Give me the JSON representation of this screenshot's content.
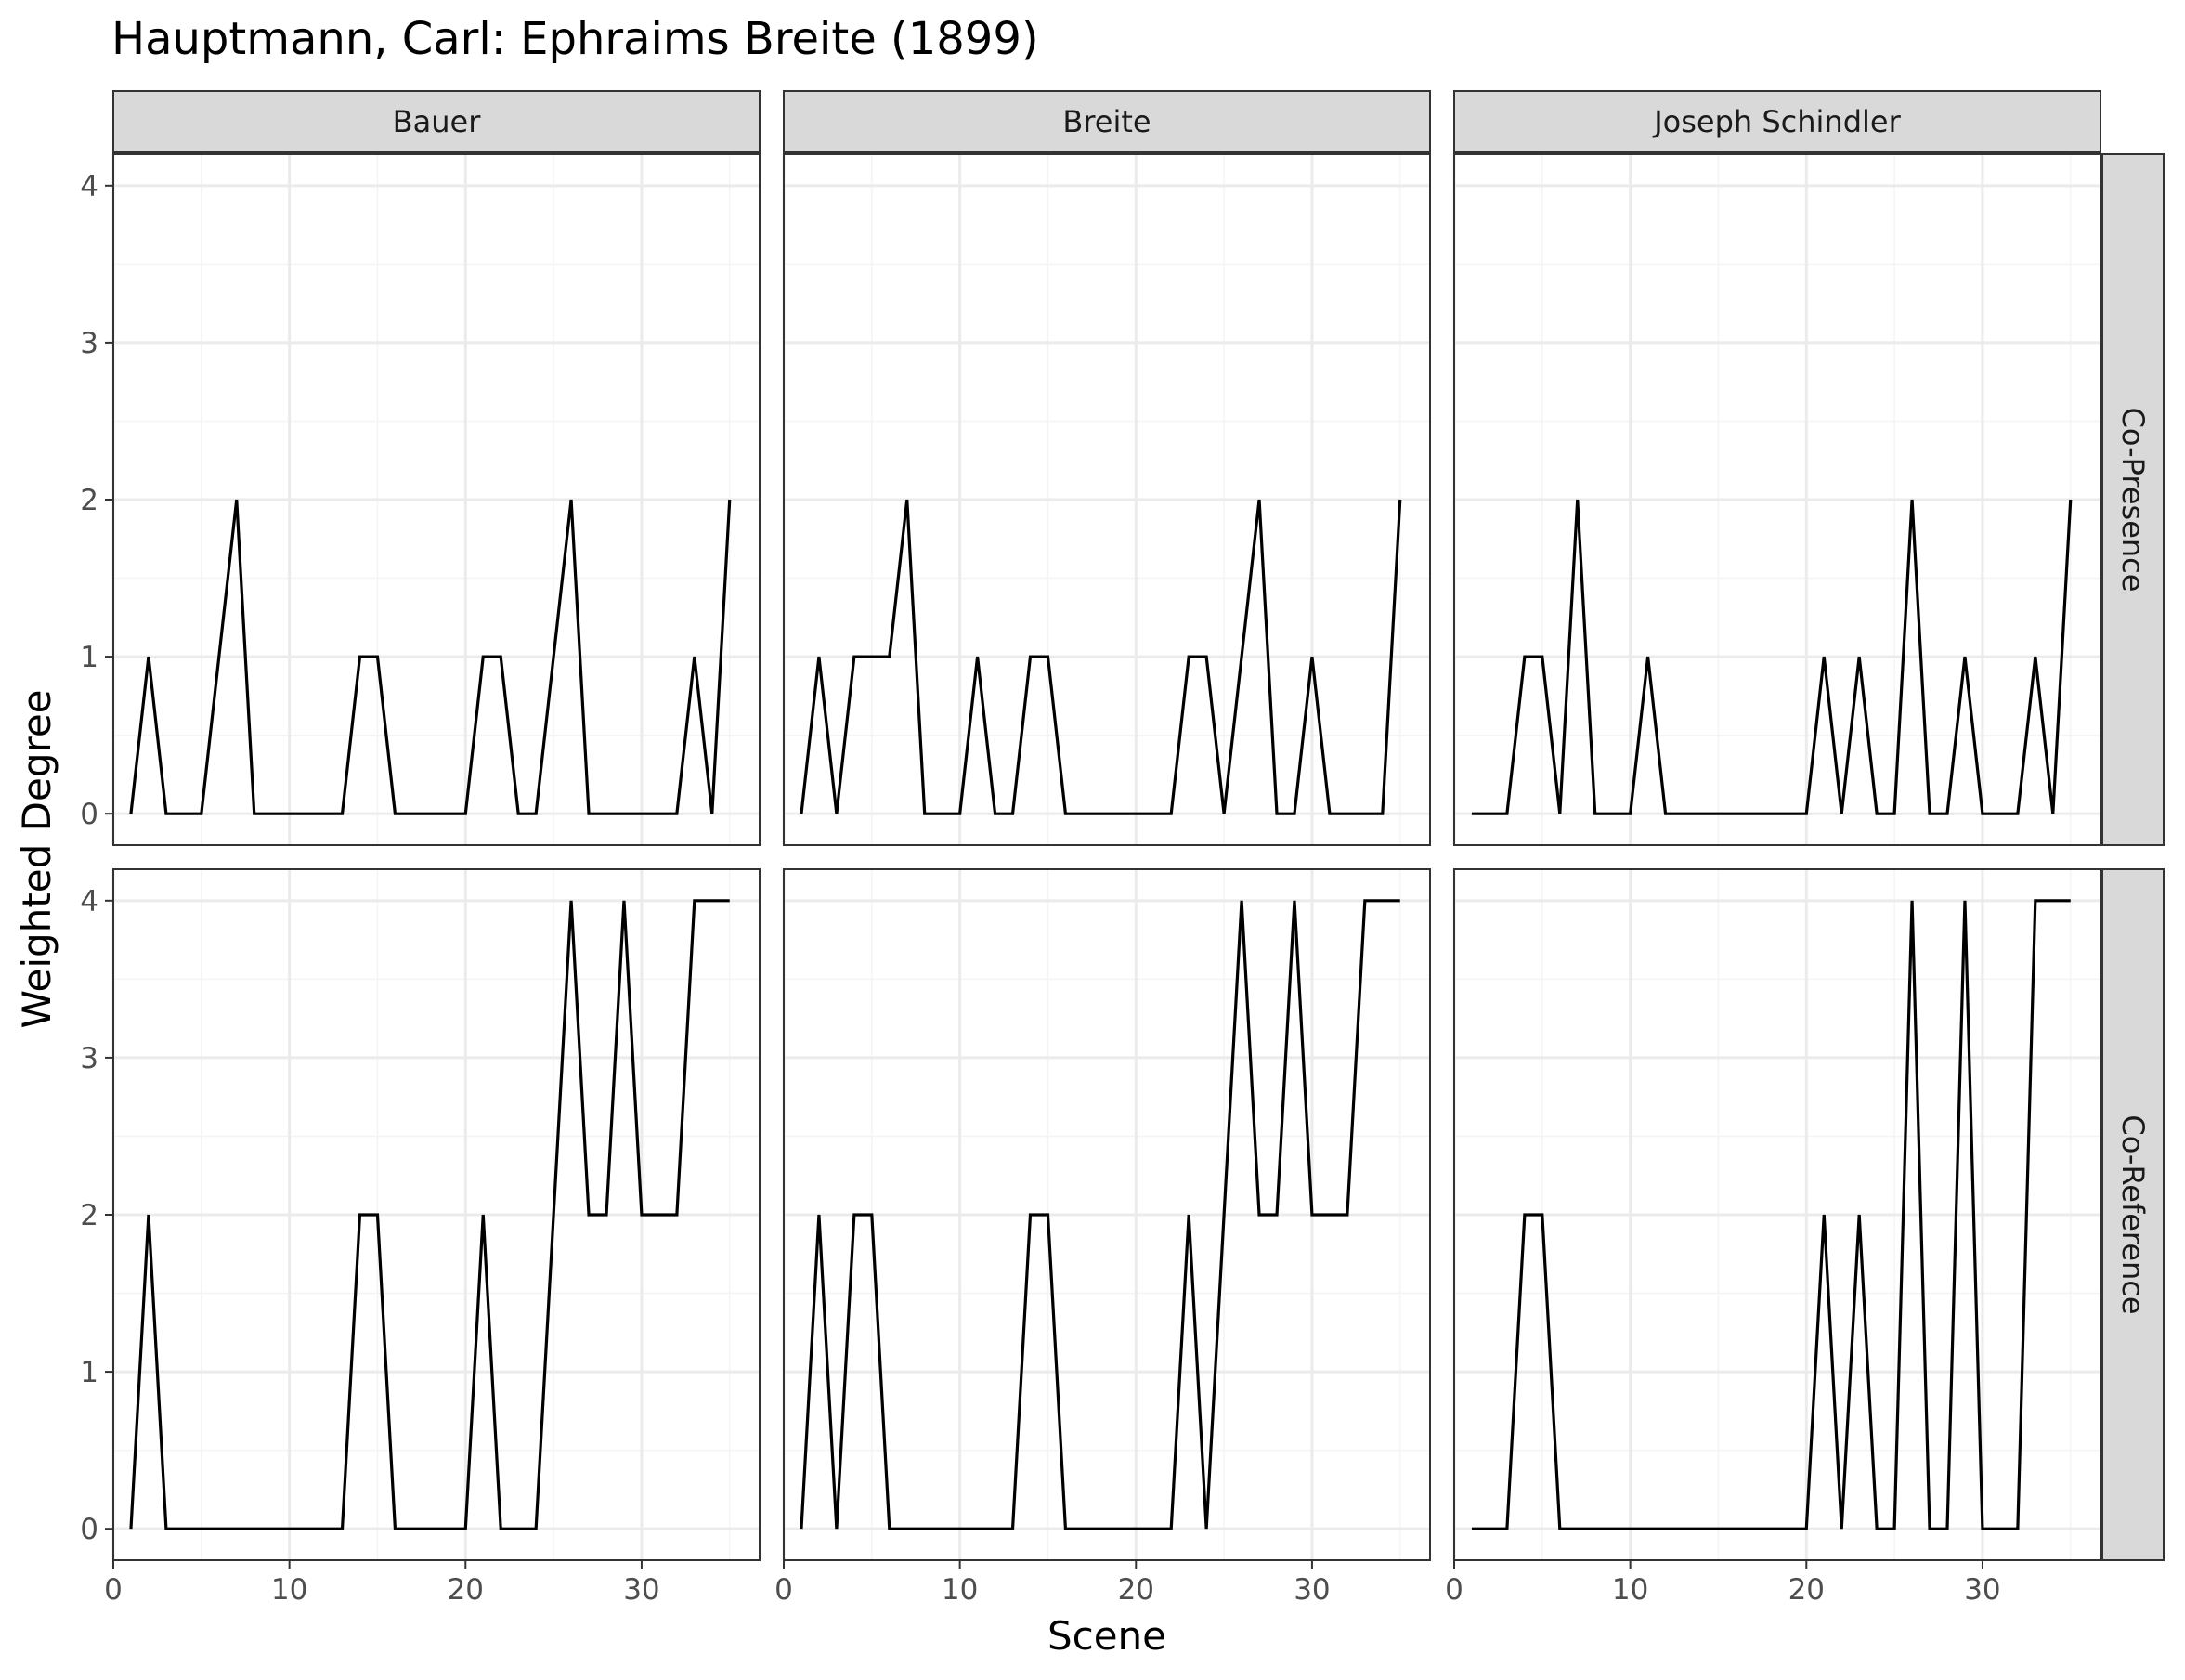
{
  "chart_data": {
    "type": "line",
    "title": "Hauptmann, Carl: Ephraims Breite (1899)",
    "xlabel": "Scene",
    "ylabel": "Weighted Degree",
    "xlim": [
      0,
      36.7
    ],
    "ylim": [
      -0.2,
      4.2
    ],
    "x_ticks": [
      0,
      10,
      20,
      30
    ],
    "y_ticks": [
      0,
      1,
      2,
      3,
      4
    ],
    "grid": true,
    "columns": [
      "Bauer",
      "Breite",
      "Joseph Schindler"
    ],
    "rows": [
      "Co-Presence",
      "Co-Reference"
    ],
    "x": [
      1,
      2,
      3,
      4,
      5,
      6,
      7,
      8,
      9,
      10,
      11,
      12,
      13,
      14,
      15,
      16,
      17,
      18,
      19,
      20,
      21,
      22,
      23,
      24,
      25,
      26,
      27,
      28,
      29,
      30,
      31,
      32,
      33,
      34,
      35
    ],
    "panels": [
      {
        "column": "Bauer",
        "row": "Co-Presence",
        "values": [
          0,
          1,
          0,
          0,
          0,
          1,
          2,
          0,
          0,
          0,
          0,
          0,
          0,
          1,
          1,
          0,
          0,
          0,
          0,
          0,
          1,
          1,
          0,
          0,
          1,
          2,
          0,
          0,
          0,
          0,
          0,
          0,
          1,
          0,
          2
        ]
      },
      {
        "column": "Breite",
        "row": "Co-Presence",
        "values": [
          0,
          1,
          0,
          1,
          1,
          1,
          2,
          0,
          0,
          0,
          1,
          0,
          0,
          1,
          1,
          0,
          0,
          0,
          0,
          0,
          0,
          0,
          1,
          1,
          0,
          1,
          2,
          0,
          0,
          1,
          0,
          0,
          0,
          0,
          2
        ]
      },
      {
        "column": "Joseph Schindler",
        "row": "Co-Presence",
        "values": [
          0,
          0,
          0,
          1,
          1,
          0,
          2,
          0,
          0,
          0,
          1,
          0,
          0,
          0,
          0,
          0,
          0,
          0,
          0,
          0,
          1,
          0,
          1,
          0,
          0,
          2,
          0,
          0,
          1,
          0,
          0,
          0,
          1,
          0,
          2
        ]
      },
      {
        "column": "Bauer",
        "row": "Co-Reference",
        "values": [
          0,
          2,
          0,
          0,
          0,
          0,
          0,
          0,
          0,
          0,
          0,
          0,
          0,
          2,
          2,
          0,
          0,
          0,
          0,
          0,
          2,
          0,
          0,
          0,
          2,
          4,
          2,
          2,
          4,
          2,
          2,
          2,
          4,
          4,
          4
        ]
      },
      {
        "column": "Breite",
        "row": "Co-Reference",
        "values": [
          0,
          2,
          0,
          2,
          2,
          0,
          0,
          0,
          0,
          0,
          0,
          0,
          0,
          2,
          2,
          0,
          0,
          0,
          0,
          0,
          0,
          0,
          2,
          0,
          2,
          4,
          2,
          2,
          4,
          2,
          2,
          2,
          4,
          4,
          4
        ]
      },
      {
        "column": "Joseph Schindler",
        "row": "Co-Reference",
        "values": [
          0,
          0,
          0,
          2,
          2,
          0,
          0,
          0,
          0,
          0,
          0,
          0,
          0,
          0,
          0,
          0,
          0,
          0,
          0,
          0,
          2,
          0,
          2,
          0,
          0,
          4,
          0,
          0,
          4,
          0,
          0,
          0,
          4,
          4,
          4
        ]
      }
    ],
    "line_color": "#000000",
    "strip_fill": "#d9d9d9",
    "panel_border": "#333333",
    "grid_major": "#ebebeb",
    "grid_minor": "#f4f4f4"
  }
}
